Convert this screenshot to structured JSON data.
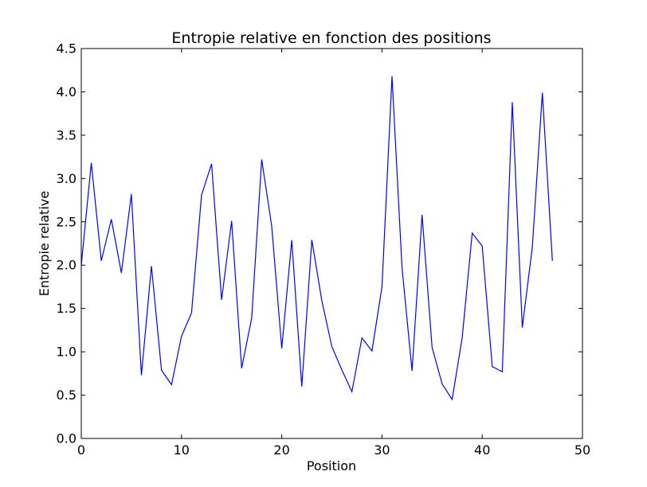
{
  "chart_data": {
    "type": "line",
    "title": "Entropie relative en fonction des positions",
    "xlabel": "Position",
    "ylabel": "Entropie relative",
    "xlim": [
      0,
      50
    ],
    "ylim": [
      0,
      4.5
    ],
    "xticks": [
      "0",
      "10",
      "20",
      "30",
      "40",
      "50"
    ],
    "yticks": [
      "0.0",
      "0.5",
      "1.0",
      "1.5",
      "2.0",
      "2.5",
      "3.0",
      "3.5",
      "4.0",
      "4.5"
    ],
    "grid": false,
    "line_color": "#0000ff",
    "series": [
      {
        "x": [
          0,
          1,
          2,
          3,
          4,
          5,
          6,
          7,
          8,
          9,
          10,
          11,
          12,
          13,
          14,
          15,
          16,
          17,
          18,
          19,
          20,
          21,
          22,
          23,
          24,
          25,
          26,
          27,
          28,
          29,
          30,
          31,
          32,
          33,
          34,
          35,
          36,
          37,
          38,
          39,
          40,
          41,
          42,
          43,
          44,
          45,
          46,
          47
        ],
        "values": [
          2.0,
          3.18,
          2.05,
          2.53,
          1.91,
          2.82,
          0.73,
          1.99,
          0.79,
          0.62,
          1.18,
          1.45,
          2.81,
          3.17,
          1.6,
          2.51,
          0.81,
          1.39,
          3.22,
          2.45,
          1.04,
          2.29,
          0.6,
          2.29,
          1.59,
          1.06,
          0.79,
          0.54,
          1.16,
          1.01,
          1.75,
          4.18,
          1.97,
          0.78,
          2.58,
          1.05,
          0.63,
          0.45,
          1.16,
          2.37,
          2.22,
          0.83,
          0.77,
          3.88,
          1.28,
          2.21,
          3.99,
          2.05
        ]
      }
    ]
  }
}
